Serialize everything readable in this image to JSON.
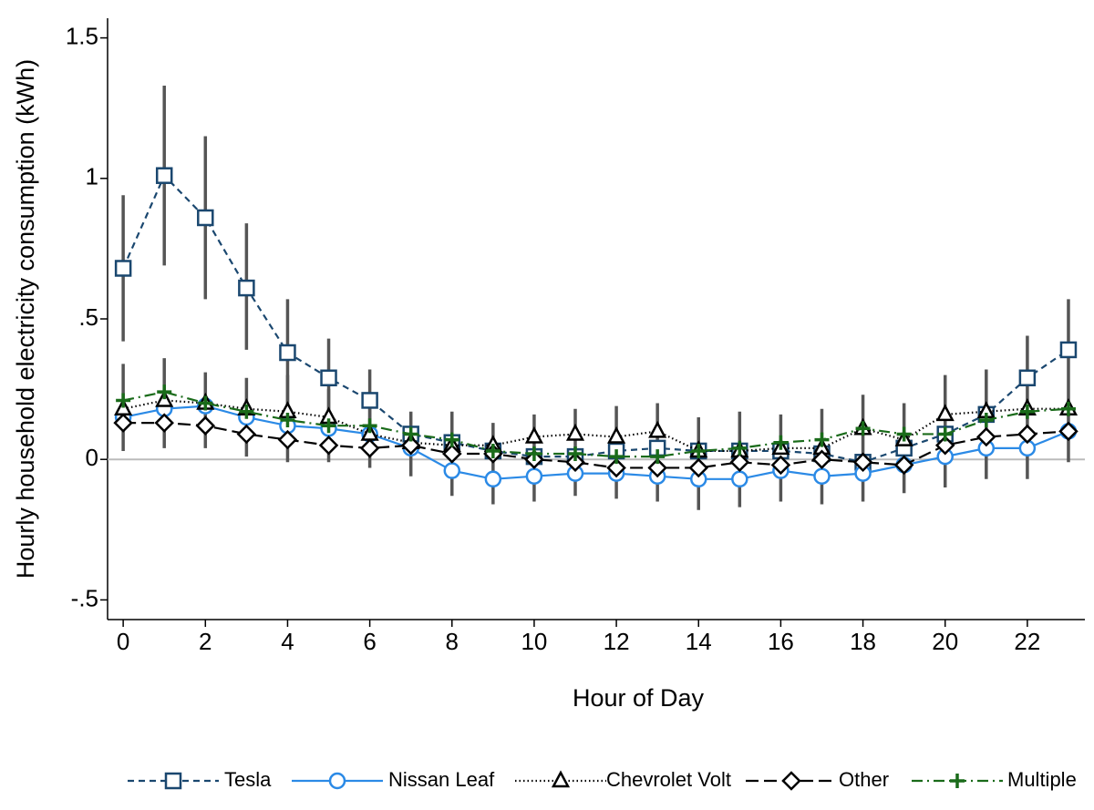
{
  "chart_data": {
    "type": "line",
    "y_label": "Hourly household electricity consumption (kWh)",
    "x_label": "Hour of Day",
    "x": [
      0,
      1,
      2,
      3,
      4,
      5,
      6,
      7,
      8,
      9,
      10,
      11,
      12,
      13,
      14,
      15,
      16,
      17,
      18,
      19,
      20,
      21,
      22,
      23
    ],
    "xlim": [
      -0.38,
      23.4
    ],
    "xticks": [
      0,
      2,
      4,
      6,
      8,
      10,
      12,
      14,
      16,
      18,
      20,
      22
    ],
    "ylim": [
      -0.57,
      1.57
    ],
    "yticks": [
      {
        "value": -0.5,
        "label": "-.5"
      },
      0,
      {
        "value": 0.5,
        "label": ".5"
      },
      1,
      1.5
    ],
    "zero_line": true,
    "legend": "bottom",
    "series": [
      {
        "name": "Tesla",
        "color": "#1a476f",
        "marker": "square",
        "dash": "7,5",
        "values": [
          0.68,
          1.01,
          0.86,
          0.61,
          0.38,
          0.29,
          0.21,
          0.09,
          0.06,
          0.03,
          0.01,
          0.01,
          0.03,
          0.04,
          0.03,
          0.03,
          0.03,
          0.02,
          -0.01,
          0.04,
          0.09,
          0.16,
          0.29,
          0.39
        ]
      },
      {
        "name": "Nissan Leaf",
        "color": "#2b8ae6",
        "marker": "circle",
        "dash": "none",
        "values": [
          0.15,
          0.18,
          0.19,
          0.15,
          0.12,
          0.11,
          0.09,
          0.04,
          -0.04,
          -0.07,
          -0.06,
          -0.05,
          -0.05,
          -0.06,
          -0.07,
          -0.07,
          -0.04,
          -0.06,
          -0.05,
          -0.02,
          0.01,
          0.04,
          0.04,
          0.1
        ]
      },
      {
        "name": "Chevrolet Volt",
        "color": "#000000",
        "marker": "triangle",
        "dash": "1.5,3",
        "values": [
          0.18,
          0.21,
          0.2,
          0.18,
          0.17,
          0.15,
          0.09,
          0.06,
          0.05,
          0.05,
          0.08,
          0.09,
          0.08,
          0.1,
          0.03,
          0.03,
          0.04,
          0.04,
          0.11,
          0.07,
          0.16,
          0.17,
          0.18,
          0.18
        ]
      },
      {
        "name": "Other",
        "color": "#000000",
        "marker": "diamond",
        "dash": "14,6",
        "values": [
          0.13,
          0.13,
          0.12,
          0.09,
          0.07,
          0.05,
          0.04,
          0.05,
          0.02,
          0.02,
          0,
          -0.01,
          -0.03,
          -0.03,
          -0.03,
          -0.01,
          -0.02,
          0,
          -0.01,
          -0.02,
          0.05,
          0.08,
          0.09,
          0.1
        ]
      },
      {
        "name": "Multiple",
        "color": "#1a6b1a",
        "marker": "plus",
        "dash": "12,5,2,5",
        "values": [
          0.21,
          0.24,
          0.2,
          0.17,
          0.14,
          0.12,
          0.12,
          0.09,
          0.07,
          0.03,
          0.02,
          0.02,
          0.01,
          0.01,
          0.03,
          0.04,
          0.06,
          0.07,
          0.11,
          0.09,
          0.09,
          0.14,
          0.17,
          0.18
        ]
      }
    ],
    "error_bars": [
      {
        "color": "#555555",
        "low": [
          0.42,
          0.69,
          0.57,
          0.39,
          0.19,
          0.14,
          0.09,
          -0.06,
          -0.13,
          -0.16,
          -0.15,
          -0.13,
          -0.14,
          -0.15,
          -0.18,
          -0.17,
          -0.15,
          -0.16,
          -0.15,
          -0.12,
          -0.1,
          -0.07,
          -0.07,
          -0.01
        ],
        "high": [
          0.94,
          1.33,
          1.15,
          0.84,
          0.57,
          0.43,
          0.32,
          0.17,
          0.17,
          0.13,
          0.16,
          0.18,
          0.19,
          0.2,
          0.15,
          0.17,
          0.16,
          0.18,
          0.23,
          0.2,
          0.3,
          0.32,
          0.44,
          0.57
        ]
      },
      {
        "color": "#555555",
        "low": [
          0.03,
          0.04,
          0.04,
          0.01,
          -0.01,
          -0.01,
          -0.03,
          null,
          null,
          null,
          null,
          null,
          null,
          null,
          null,
          null,
          null,
          null,
          null,
          null,
          null,
          null,
          null,
          null
        ],
        "high": [
          0.34,
          0.36,
          0.31,
          0.29,
          0.3,
          0.25,
          0.22,
          null,
          null,
          null,
          null,
          null,
          null,
          null,
          null,
          null,
          null,
          null,
          null,
          null,
          null,
          null,
          null,
          null
        ]
      }
    ]
  }
}
